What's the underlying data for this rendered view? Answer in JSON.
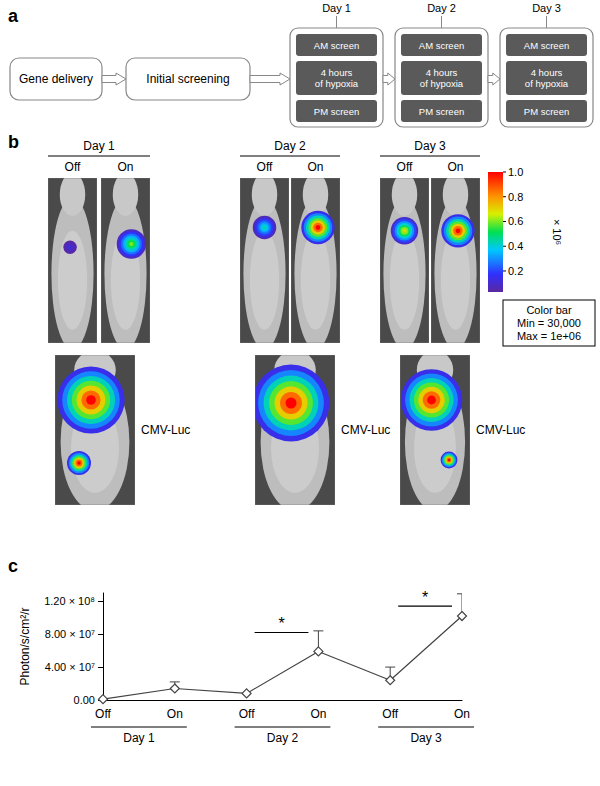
{
  "panel_a": {
    "label": "a",
    "steps": [
      "Gene delivery",
      "Initial screening"
    ],
    "days": [
      {
        "title": "Day 1",
        "steps": [
          "AM screen",
          "4 hours of hypoxia",
          "PM screen"
        ]
      },
      {
        "title": "Day 2",
        "steps": [
          "AM screen",
          "4 hours of hypoxia",
          "PM screen"
        ]
      },
      {
        "title": "Day 3",
        "steps": [
          "AM screen",
          "4 hours of hypoxia",
          "PM screen"
        ]
      }
    ]
  },
  "panel_b": {
    "label": "b",
    "days": [
      {
        "title": "Day 1",
        "images": [
          {
            "label": "Off",
            "signal": 0.12
          },
          {
            "label": "On",
            "signal": 0.6
          }
        ],
        "control": {
          "label": "CMV-Luc",
          "signal": 1.0
        }
      },
      {
        "title": "Day 2",
        "images": [
          {
            "label": "Off",
            "signal": 0.45
          },
          {
            "label": "On",
            "signal": 1.0
          }
        ],
        "control": {
          "label": "CMV-Luc",
          "signal": 1.0
        }
      },
      {
        "title": "Day 3",
        "images": [
          {
            "label": "Off",
            "signal": 0.7
          },
          {
            "label": "On",
            "signal": 1.0
          }
        ],
        "control": {
          "label": "CMV-Luc",
          "signal": 1.0
        }
      }
    ],
    "colorbar": {
      "range": [
        0.03,
        1.0
      ],
      "ticks": [
        0.2,
        0.4,
        0.6,
        0.8,
        {
          "value": 1.0,
          "label": "1.0"
        }
      ],
      "multiplier": "× 10⁶",
      "legend_box": [
        "Color bar",
        "Min = 30,000",
        "Max = 1e+06"
      ]
    }
  },
  "panel_c_label": "c",
  "chart_data": {
    "type": "line",
    "categories": [
      "Off",
      "On",
      "Off",
      "On",
      "Off",
      "On"
    ],
    "x_groups": [
      "Day 1",
      "Day 2",
      "Day 3"
    ],
    "y_label": "Photon/s/cm²/r",
    "values": [
      1000000,
      14000000,
      8000000,
      59000000,
      24000000,
      102000000
    ],
    "errors": [
      0,
      8000000,
      0,
      25000000,
      16000000,
      27000000
    ],
    "color": "#444444",
    "marker": "diamond",
    "grid": false,
    "ylim": [
      0,
      130000000
    ],
    "yticks": [
      {
        "value": 0,
        "label": "0.00"
      },
      {
        "value": 40000000,
        "label": "4.00 × 10⁷"
      },
      {
        "value": 80000000,
        "label": "8.00 × 10⁷"
      },
      {
        "value": 120000000,
        "label": "1.20 × 10⁸"
      }
    ],
    "annotations": [
      {
        "text": "*",
        "group": "Day 2",
        "y": 82000000
      },
      {
        "text": "*",
        "group": "Day 3",
        "y": 114000000
      }
    ]
  }
}
